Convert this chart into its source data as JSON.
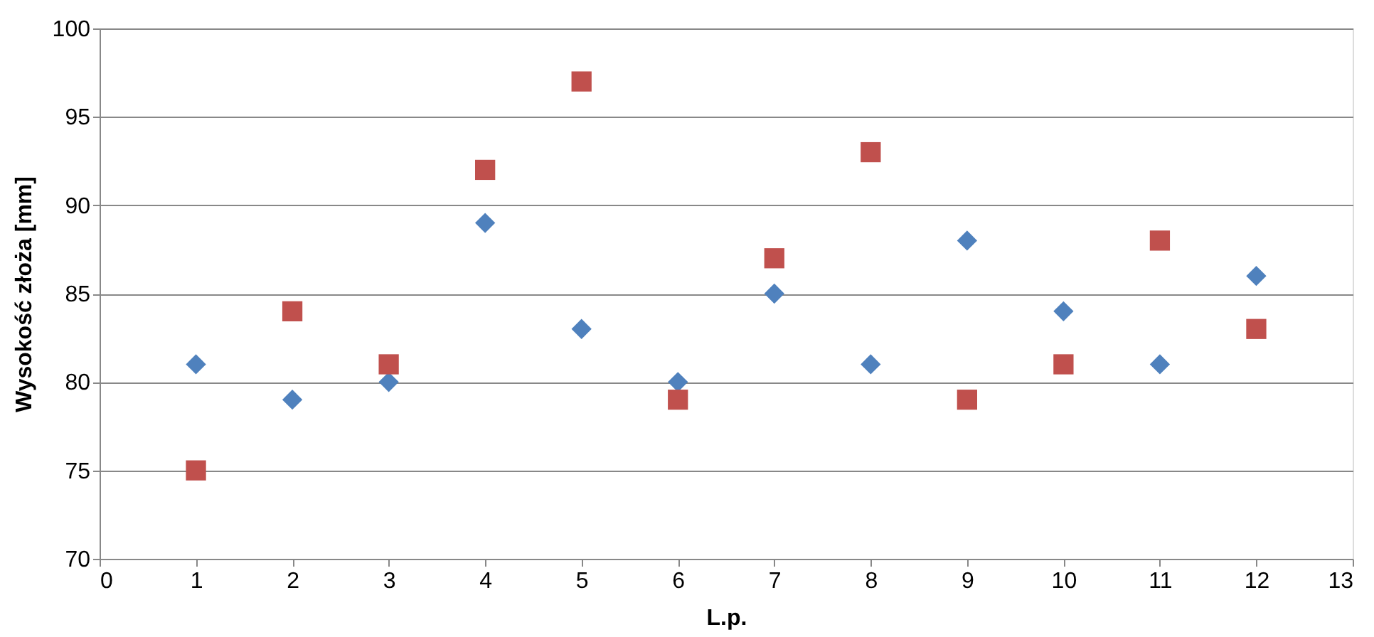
{
  "chart_data": {
    "type": "scatter",
    "xlabel": "L.p.",
    "ylabel": "Wysokość złoża [mm]",
    "x": [
      1,
      2,
      3,
      4,
      5,
      6,
      7,
      8,
      9,
      10,
      11,
      12
    ],
    "series": [
      {
        "color": "#4f81bd",
        "marker": "diamond",
        "values": [
          81,
          79,
          80,
          89,
          83,
          80,
          85,
          81,
          88,
          84,
          81,
          86
        ]
      },
      {
        "color": "#c0504d",
        "marker": "square",
        "values": [
          75,
          84,
          81,
          92,
          97,
          79,
          87,
          93,
          79,
          81,
          88,
          83
        ]
      }
    ],
    "xlim": [
      0,
      13
    ],
    "xticks": [
      0,
      1,
      2,
      3,
      4,
      5,
      6,
      7,
      8,
      9,
      10,
      11,
      12,
      13
    ],
    "ylim": [
      70,
      100
    ],
    "yticks": [
      70,
      75,
      80,
      85,
      90,
      95,
      100
    ],
    "grid": "y"
  }
}
